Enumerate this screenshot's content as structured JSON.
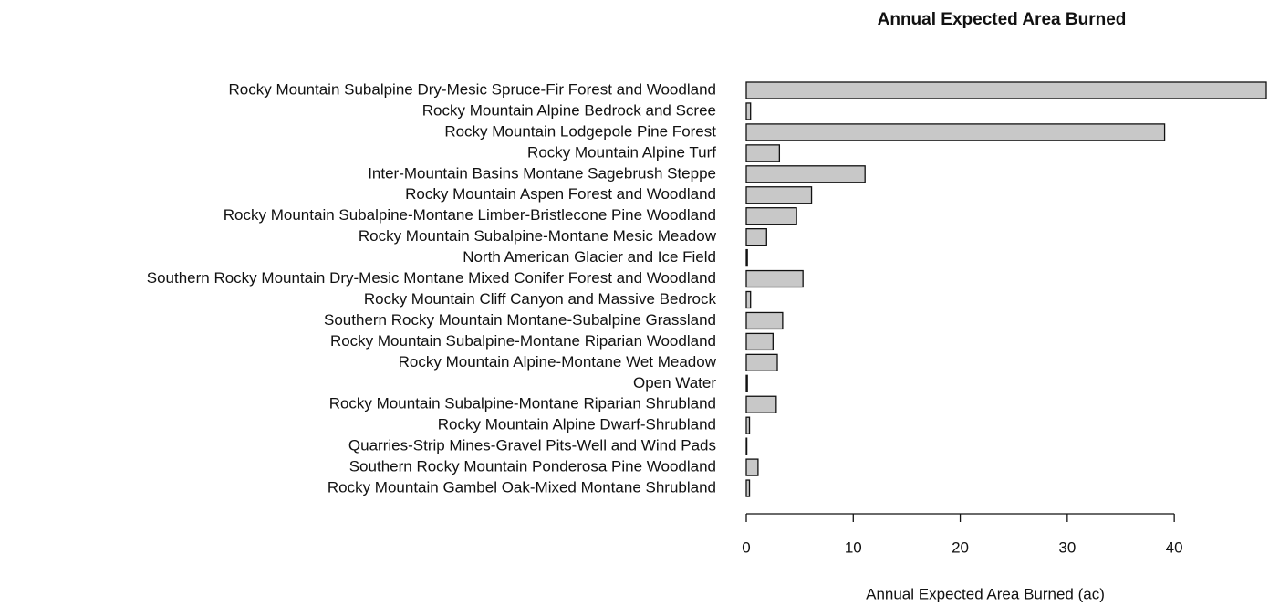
{
  "chart_data": {
    "type": "barh",
    "title": "Annual Expected Area Burned",
    "x_label": "Annual Expected Area Burned (ac)",
    "categories": [
      "Rocky Mountain Subalpine Dry-Mesic Spruce-Fir Forest and Woodland",
      "Rocky Mountain Alpine Bedrock and Scree",
      "Rocky Mountain Lodgepole Pine Forest",
      "Rocky Mountain Alpine Turf",
      "Inter-Mountain Basins Montane Sagebrush Steppe",
      "Rocky Mountain Aspen Forest and Woodland",
      "Rocky Mountain Subalpine-Montane Limber-Bristlecone Pine Woodland",
      "Rocky Mountain Subalpine-Montane Mesic Meadow",
      "North American Glacier and Ice Field",
      "Southern Rocky Mountain Dry-Mesic Montane Mixed Conifer Forest and Woodland",
      "Rocky Mountain Cliff Canyon and Massive Bedrock",
      "Southern Rocky Mountain Montane-Subalpine Grassland",
      "Rocky Mountain Subalpine-Montane Riparian Woodland",
      "Rocky Mountain Alpine-Montane Wet Meadow",
      "Open Water",
      "Rocky Mountain Subalpine-Montane Riparian Shrubland",
      "Rocky Mountain Alpine Dwarf-Shrubland",
      "Quarries-Strip Mines-Gravel Pits-Well and Wind Pads",
      "Southern Rocky Mountain Ponderosa Pine Woodland",
      "Rocky Mountain Gambel Oak-Mixed Montane Shrubland"
    ],
    "values": [
      48.6,
      0.4,
      39.1,
      3.1,
      11.1,
      6.1,
      4.7,
      1.9,
      0.1,
      5.3,
      0.4,
      3.4,
      2.5,
      2.9,
      0.1,
      2.8,
      0.3,
      0.05,
      1.1,
      0.3
    ],
    "color": "#c8c8c8",
    "xlim": [
      0,
      48.6
    ],
    "xticks": [
      0,
      10,
      20,
      30,
      40
    ]
  }
}
